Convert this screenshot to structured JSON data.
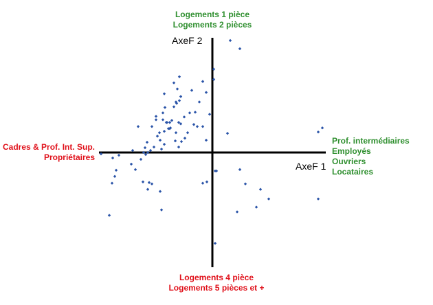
{
  "labels": {
    "top": [
      "Logements 1 pièce",
      "Logements 2 pièces"
    ],
    "bottom": [
      "Logements 4 pièce",
      "Logements 5 pièces et +"
    ],
    "left": [
      "Cadres & Prof. Int. Sup.",
      "Propriétaires"
    ],
    "right": [
      "Prof. intermédiaires",
      "Employés",
      "Ouvriers",
      "Locataires"
    ]
  },
  "colors": {
    "positive": "#2f8f2f",
    "negative": "#e0101a",
    "points": "#2a54a8",
    "axes": "#000000"
  },
  "chart_data": {
    "type": "scatter",
    "xlabel": "AxeF 1",
    "ylabel": "AxeF 2",
    "xlim": [
      -165,
      165
    ],
    "ylim": [
      -168,
      168
    ],
    "grid": false,
    "points": [
      [
        -48,
        111
      ],
      [
        26,
        164
      ],
      [
        40,
        152
      ],
      [
        -56,
        102
      ],
      [
        -70,
        86
      ],
      [
        -30,
        91
      ],
      [
        -9,
        88
      ],
      [
        -14,
        104
      ],
      [
        2,
        107
      ],
      [
        -46,
        82
      ],
      [
        -51,
        93
      ],
      [
        -56,
        67
      ],
      [
        -53,
        74
      ],
      [
        -48,
        76
      ],
      [
        -69,
        66
      ],
      [
        -52,
        72
      ],
      [
        -49,
        44
      ],
      [
        -59,
        47
      ],
      [
        -82,
        53
      ],
      [
        -70,
        31
      ],
      [
        -19,
        74
      ],
      [
        -25,
        59
      ],
      [
        -33,
        58
      ],
      [
        -4,
        56
      ],
      [
        -27,
        41
      ],
      [
        -41,
        52
      ],
      [
        -72,
        58
      ],
      [
        -67,
        44
      ],
      [
        -64,
        35
      ],
      [
        -61,
        36
      ],
      [
        -53,
        29
      ],
      [
        -36,
        29
      ],
      [
        -40,
        21
      ],
      [
        -45,
        16
      ],
      [
        -54,
        17
      ],
      [
        -88,
        38
      ],
      [
        -82,
        48
      ],
      [
        -14,
        38
      ],
      [
        -22,
        38
      ],
      [
        -66,
        44
      ],
      [
        -46,
        42
      ],
      [
        -62,
        35
      ],
      [
        -77,
        29
      ],
      [
        -108,
        38
      ],
      [
        -100,
        0
      ],
      [
        -70,
        12
      ],
      [
        -76,
        18
      ],
      [
        -80,
        24
      ],
      [
        -95,
        15
      ],
      [
        -49,
        8
      ],
      [
        -9,
        18
      ],
      [
        -74,
        5
      ],
      [
        -98,
        7
      ],
      [
        -116,
        3
      ],
      [
        -62,
        44
      ],
      [
        -72,
        48
      ],
      [
        -94,
        0
      ],
      [
        -104,
        -10
      ],
      [
        -150,
        -92
      ],
      [
        -162,
        -2
      ],
      [
        -145,
        -8
      ],
      [
        -136,
        -4
      ],
      [
        -118,
        -17
      ],
      [
        -112,
        -25
      ],
      [
        -101,
        -43
      ],
      [
        -94,
        -54
      ],
      [
        -140,
        -26
      ],
      [
        -146,
        -45
      ],
      [
        -92,
        -44
      ],
      [
        -88,
        -46
      ],
      [
        -76,
        -57
      ],
      [
        -74,
        -84
      ],
      [
        -97,
        -3
      ],
      [
        -142,
        -35
      ],
      [
        -14,
        -45
      ],
      [
        -8,
        -43
      ],
      [
        4,
        -27
      ],
      [
        6,
        -27
      ],
      [
        40,
        -25
      ],
      [
        48,
        -46
      ],
      [
        70,
        -54
      ],
      [
        82,
        -68
      ],
      [
        64,
        -80
      ],
      [
        36,
        -87
      ],
      [
        154,
        -68
      ],
      [
        22,
        28
      ],
      [
        154,
        30
      ],
      [
        4,
        -133
      ],
      [
        160,
        36
      ],
      [
        2,
        122
      ],
      [
        -90,
        3
      ],
      [
        -85,
        8
      ]
    ]
  }
}
